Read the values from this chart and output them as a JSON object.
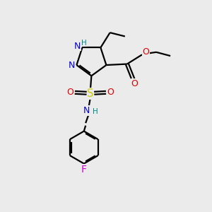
{
  "background_color": "#ebebeb",
  "bond_color": "#000000",
  "atom_colors": {
    "N": "#0000dd",
    "O": "#dd0000",
    "S": "#cccc00",
    "F": "#cc00cc",
    "H_label": "#008888",
    "C": "#000000"
  },
  "figsize": [
    3.0,
    3.0
  ],
  "dpi": 100
}
